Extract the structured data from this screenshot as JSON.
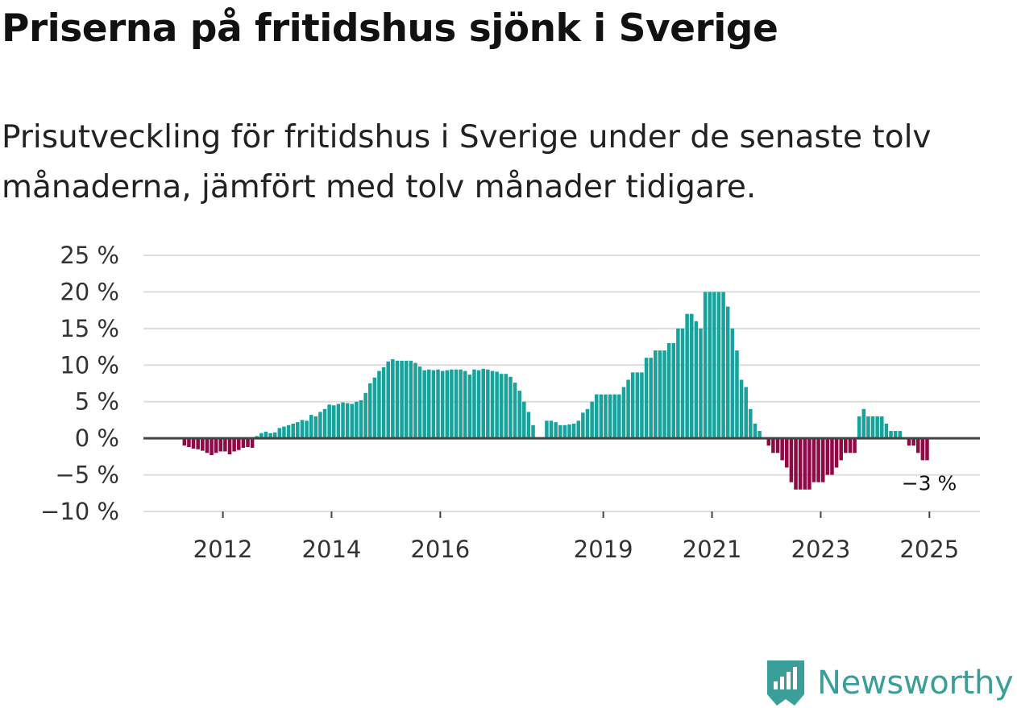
{
  "title": "Priserna på fritidshus sjönk i Sverige",
  "subtitle": "Prisutveckling för fritidshus i Sverige under de senaste tolv månaderna, jämfört med tolv månader tidigare.",
  "logo": {
    "text": "Newsworthy",
    "icon": "newsworthy-chart-icon",
    "color": "#3a9e99"
  },
  "colors": {
    "positive": "#17a39b",
    "negative": "#8f0a45",
    "zero_line": "#444444",
    "grid": "#dddddd"
  },
  "chart_data": {
    "type": "bar",
    "title": "Priserna på fritidshus sjönk i Sverige",
    "xlabel": "",
    "ylabel": "",
    "ylim": [
      -10,
      25
    ],
    "y_ticks": [
      25,
      20,
      15,
      10,
      5,
      0,
      -5,
      -10
    ],
    "y_tick_labels": [
      "25 %",
      "20 %",
      "15 %",
      "10 %",
      "5 %",
      "0 %",
      "−5 %",
      "−10 %"
    ],
    "x_tick_labels": [
      {
        "label": "2012",
        "year": 2012
      },
      {
        "label": "2014",
        "year": 2014
      },
      {
        "label": "2016",
        "year": 2016
      },
      {
        "label": "2019",
        "year": 2019
      },
      {
        "label": "2021",
        "year": 2021
      },
      {
        "label": "2023",
        "year": 2023
      },
      {
        "label": "2025",
        "year": 2025
      }
    ],
    "x_start": {
      "year": 2011,
      "month": 4
    },
    "grid": true,
    "values": [
      -1.0,
      -1.2,
      -1.4,
      -1.5,
      -1.7,
      -2.0,
      -2.3,
      -2.0,
      -1.8,
      -1.8,
      -2.2,
      -1.8,
      -1.6,
      -1.3,
      -1.2,
      -1.3,
      0.3,
      0.7,
      0.9,
      0.7,
      0.8,
      1.4,
      1.6,
      1.8,
      2.0,
      2.2,
      2.5,
      2.4,
      3.2,
      3.0,
      3.6,
      4.0,
      4.6,
      4.5,
      4.7,
      4.9,
      4.8,
      4.7,
      5.0,
      5.2,
      6.2,
      7.5,
      8.3,
      9.2,
      9.7,
      10.5,
      10.8,
      10.6,
      10.6,
      10.6,
      10.6,
      10.3,
      9.8,
      9.3,
      9.4,
      9.3,
      9.4,
      9.2,
      9.3,
      9.4,
      9.4,
      9.4,
      9.2,
      8.7,
      9.4,
      9.3,
      9.5,
      9.4,
      9.2,
      9.1,
      8.8,
      8.8,
      8.4,
      7.6,
      6.5,
      5.0,
      3.6,
      1.8,
      null,
      null,
      2.4,
      2.4,
      2.2,
      1.8,
      1.8,
      1.9,
      2.0,
      2.4,
      3.5,
      4.0,
      5.0,
      6.0,
      6.0,
      6.0,
      6.0,
      6.0,
      6.0,
      7.0,
      8.0,
      9.0,
      9.0,
      9.0,
      11.0,
      11.0,
      12.0,
      12.0,
      12.0,
      13.0,
      13.0,
      15.0,
      15.0,
      17.0,
      17.0,
      16.0,
      15.0,
      20.0,
      20.0,
      20.0,
      20.0,
      20.0,
      18.0,
      15.0,
      12.0,
      8.0,
      7.0,
      4.0,
      2.0,
      1.0,
      0.0,
      -1.0,
      -2.0,
      -2.0,
      -3.0,
      -4.0,
      -6.0,
      -7.0,
      -7.0,
      -7.0,
      -7.0,
      -6.0,
      -6.0,
      -6.0,
      -5.0,
      -5.0,
      -4.0,
      -3.0,
      -2.0,
      -2.0,
      -2.0,
      3.0,
      4.0,
      3.0,
      3.0,
      3.0,
      3.0,
      2.0,
      1.0,
      1.0,
      1.0,
      0.0,
      -1.0,
      -1.0,
      -2.0,
      -3.0,
      -3.0
    ],
    "annotations": [
      {
        "text": "−3 %",
        "at": "last"
      }
    ]
  }
}
